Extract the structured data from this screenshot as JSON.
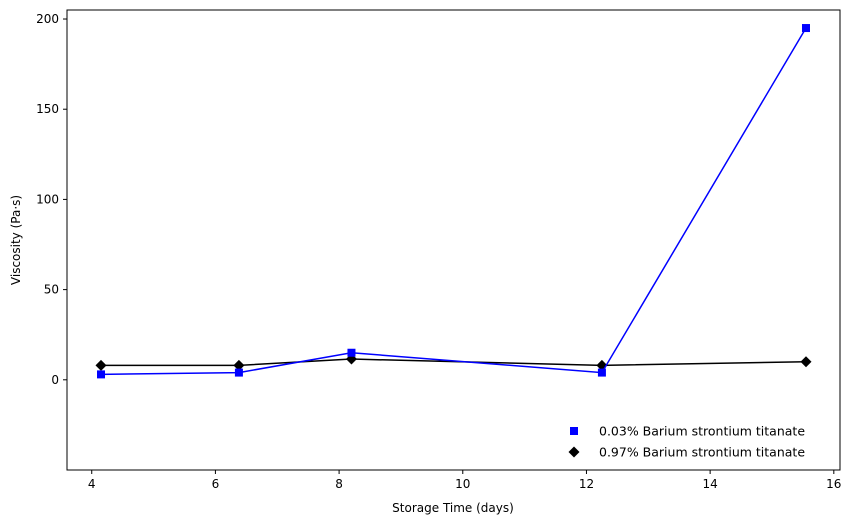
{
  "chart_data": {
    "type": "line",
    "title": "",
    "xlabel": "Storage Time (days)",
    "ylabel": "Viscosity (Pa·s)",
    "xlim": [
      3.6,
      16.1
    ],
    "ylim": [
      -50,
      205
    ],
    "xticks": [
      4,
      6,
      8,
      10,
      12,
      14,
      16
    ],
    "yticks": [
      0,
      50,
      100,
      150,
      200
    ],
    "grid": false,
    "legend_position": "lower-right",
    "series": [
      {
        "name": "0.03% Barium strontium titanate",
        "color": "#0000ff",
        "marker": "square",
        "x": [
          4.15,
          6.38,
          8.2,
          12.25,
          15.55
        ],
        "y": [
          3,
          4,
          15,
          4,
          195
        ]
      },
      {
        "name": "0.97% Barium strontium titanate",
        "color": "#000000",
        "marker": "diamond",
        "x": [
          4.15,
          6.38,
          8.2,
          12.25,
          15.55
        ],
        "y": [
          8,
          8,
          11.5,
          8,
          10
        ]
      }
    ]
  }
}
